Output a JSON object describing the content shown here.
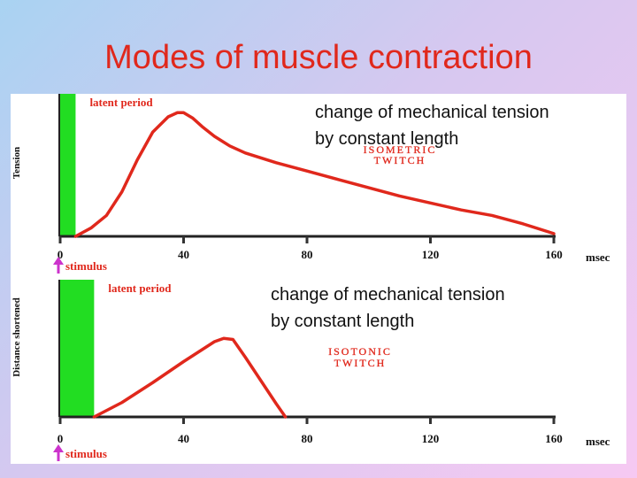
{
  "title": "Modes of muscle contraction",
  "colors": {
    "title": "#e0281c",
    "curve": "#e0281c",
    "latent": "#22dd22",
    "stimulus_arrow": "#cc33cc"
  },
  "chart_data": [
    {
      "type": "line",
      "name_label": "ISOMETRIC TWITCH",
      "ylabel": "Tension",
      "x_unit": "msec",
      "x_ticks": [
        0,
        40,
        80,
        120,
        160
      ],
      "xlim": [
        0,
        160
      ],
      "ylim": [
        0,
        1
      ],
      "latent_label": "latent period",
      "latent_period": [
        0,
        5
      ],
      "stimulus_label": "stimulus",
      "note": [
        "change of mechanical tension",
        "by constant length"
      ],
      "series": [
        {
          "x": [
            5,
            10,
            15,
            20,
            25,
            30,
            35,
            38,
            40,
            43,
            46,
            50,
            55,
            60,
            70,
            80,
            90,
            100,
            110,
            120,
            130,
            140,
            150,
            160
          ],
          "y": [
            0,
            0.06,
            0.15,
            0.32,
            0.55,
            0.75,
            0.86,
            0.89,
            0.89,
            0.85,
            0.79,
            0.72,
            0.65,
            0.6,
            0.53,
            0.47,
            0.41,
            0.35,
            0.29,
            0.24,
            0.19,
            0.15,
            0.09,
            0.02
          ]
        }
      ]
    },
    {
      "type": "line",
      "name_label": "ISOTONIC TWITCH",
      "ylabel": "Distance shortened",
      "x_unit": "msec",
      "x_ticks": [
        0,
        40,
        80,
        120,
        160
      ],
      "xlim": [
        0,
        160
      ],
      "ylim": [
        0,
        1
      ],
      "latent_label": "latent period",
      "latent_period": [
        0,
        11
      ],
      "stimulus_label": "stimulus",
      "note": [
        "change of mechanical tension",
        "by constant length"
      ],
      "series": [
        {
          "x": [
            11,
            20,
            30,
            40,
            50,
            53,
            56,
            60,
            65,
            70,
            73
          ],
          "y": [
            0,
            0.13,
            0.31,
            0.5,
            0.68,
            0.71,
            0.7,
            0.54,
            0.33,
            0.12,
            0.0
          ]
        }
      ]
    }
  ]
}
